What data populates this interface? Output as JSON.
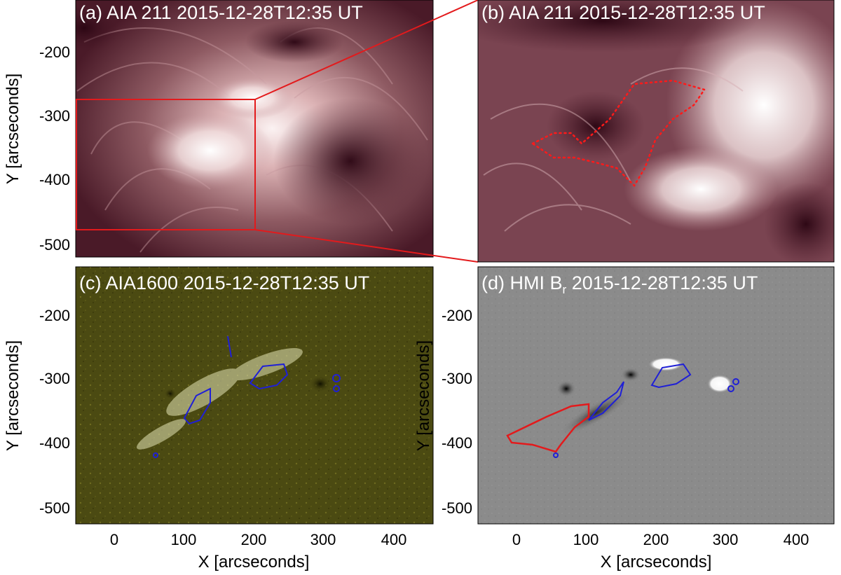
{
  "figure": {
    "panels": [
      {
        "id": "a",
        "label": "(a) AIA 211  2015-12-28T12:35 UT",
        "colormap": "aia-211-maroon"
      },
      {
        "id": "b",
        "label": "(b) AIA 211  2015-12-28T12:35 UT",
        "colormap": "aia-211-maroon"
      },
      {
        "id": "c",
        "label": "(c) AIA1600  2015-12-28T12:35 UT",
        "colormap": "aia-1600-olive"
      },
      {
        "id": "d",
        "label": "(d) HMI B",
        "label_sub": "r",
        "label_tail": "  2015-12-28T12:35 UT",
        "colormap": "hmi-gray"
      }
    ],
    "x_axis": {
      "title": "X [arcseconds]",
      "ticks": [
        "0",
        "100",
        "200",
        "300",
        "400"
      ],
      "range": [
        -60,
        450
      ]
    },
    "y_axis": {
      "title": "Y [arcseconds]",
      "ticks": [
        "-200",
        "-300",
        "-400",
        "-500"
      ],
      "range": [
        -530,
        -145
      ]
    },
    "zoom_box": {
      "x": [
        -60,
        200
      ],
      "y": [
        -475,
        -277
      ],
      "color": "#e31a1c"
    },
    "contours": {
      "flare_ribbons": "#1f1fd6",
      "dimming_region": "#e31a1c"
    }
  }
}
